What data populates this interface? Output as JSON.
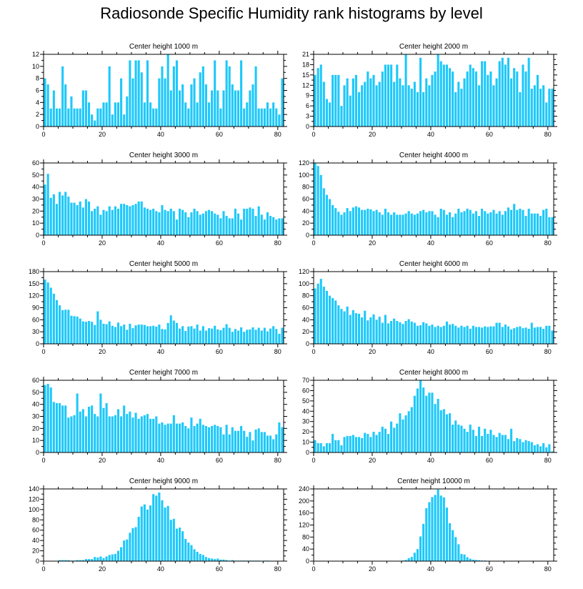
{
  "figure": {
    "title": "Radiosonde Specific Humidity rank histograms by level"
  },
  "chart_data": [
    {
      "type": "bar",
      "title": "Center height 1000 m",
      "xlabel": "",
      "ylabel": "",
      "xlim": [
        0,
        82
      ],
      "ylim": [
        0,
        12
      ],
      "xticks": [
        0,
        20,
        40,
        60,
        80
      ],
      "yticks": [
        0,
        2,
        4,
        6,
        8,
        10,
        12
      ],
      "bar_color": "#1ec8fa",
      "values": [
        8,
        7,
        3,
        6,
        3,
        3,
        10,
        7,
        3,
        5,
        3,
        3,
        3,
        6,
        6,
        4,
        2,
        1,
        3,
        3,
        4,
        4,
        10,
        2,
        4,
        4,
        8,
        2,
        5,
        11,
        8,
        11,
        11,
        9,
        4,
        11,
        4,
        3,
        3,
        8,
        10,
        8,
        12,
        6,
        10,
        11,
        6,
        7,
        4,
        3,
        7,
        8,
        4,
        9,
        10,
        7,
        4,
        6,
        11,
        6,
        3,
        6,
        11,
        10,
        7,
        6,
        6,
        11,
        3,
        4,
        6,
        7,
        10,
        3,
        3,
        3,
        4,
        3,
        4,
        3,
        2,
        8
      ]
    },
    {
      "type": "bar",
      "title": "Center height 2000 m",
      "xlabel": "",
      "ylabel": "",
      "xlim": [
        0,
        82
      ],
      "ylim": [
        0,
        21
      ],
      "xticks": [
        0,
        20,
        40,
        60,
        80
      ],
      "yticks": [
        0,
        3,
        6,
        9,
        12,
        15,
        18,
        21
      ],
      "bar_color": "#1ec8fa",
      "values": [
        15,
        17,
        18,
        13,
        8,
        7,
        15,
        15,
        15,
        6,
        12,
        14,
        9,
        14,
        15,
        10,
        12,
        13,
        16,
        14,
        15,
        12,
        13,
        16,
        18,
        18,
        18,
        13,
        18,
        14,
        12,
        21,
        12,
        11,
        13,
        10,
        20,
        10,
        14,
        12,
        15,
        16,
        21,
        19,
        18,
        18,
        17,
        16,
        10,
        13,
        11,
        14,
        16,
        18,
        17,
        16,
        12,
        19,
        19,
        15,
        16,
        12,
        14,
        19,
        20,
        18,
        20,
        14,
        17,
        16,
        10,
        18,
        16,
        20,
        11,
        12,
        15,
        11,
        12,
        7,
        11,
        11
      ]
    },
    {
      "type": "bar",
      "title": "Center height 3000 m",
      "xlabel": "",
      "ylabel": "",
      "xlim": [
        0,
        82
      ],
      "ylim": [
        0,
        60
      ],
      "xticks": [
        0,
        20,
        40,
        60,
        80
      ],
      "yticks": [
        0,
        10,
        20,
        30,
        40,
        50,
        60
      ],
      "bar_color": "#1ec8fa",
      "values": [
        42,
        51,
        31,
        34,
        26,
        36,
        33,
        36,
        32,
        27,
        27,
        25,
        28,
        23,
        30,
        28,
        20,
        22,
        24,
        17,
        21,
        20,
        24,
        21,
        24,
        22,
        26,
        26,
        25,
        24,
        25,
        26,
        28,
        28,
        23,
        22,
        21,
        22,
        20,
        19,
        25,
        21,
        20,
        22,
        20,
        13,
        22,
        21,
        19,
        15,
        19,
        22,
        20,
        17,
        18,
        20,
        21,
        20,
        18,
        17,
        14,
        20,
        16,
        14,
        14,
        22,
        18,
        13,
        22,
        22,
        23,
        22,
        16,
        24,
        17,
        13,
        19,
        16,
        15,
        13,
        14,
        14
      ]
    },
    {
      "type": "bar",
      "title": "Center height 4000 m",
      "xlabel": "",
      "ylabel": "",
      "xlim": [
        0,
        82
      ],
      "ylim": [
        0,
        120
      ],
      "xticks": [
        0,
        20,
        40,
        60,
        80
      ],
      "yticks": [
        0,
        20,
        40,
        60,
        80,
        100,
        120
      ],
      "bar_color": "#1ec8fa",
      "values": [
        120,
        115,
        100,
        78,
        67,
        60,
        50,
        45,
        39,
        34,
        38,
        45,
        40,
        46,
        48,
        46,
        42,
        42,
        44,
        43,
        40,
        42,
        38,
        34,
        44,
        38,
        34,
        38,
        34,
        34,
        34,
        36,
        40,
        36,
        34,
        36,
        40,
        42,
        38,
        40,
        40,
        34,
        30,
        44,
        42,
        34,
        38,
        30,
        36,
        44,
        38,
        40,
        44,
        42,
        36,
        40,
        32,
        44,
        40,
        36,
        38,
        42,
        36,
        40,
        34,
        40,
        46,
        42,
        52,
        42,
        44,
        42,
        32,
        44,
        36,
        36,
        36,
        32,
        42,
        44,
        30,
        30
      ]
    },
    {
      "type": "bar",
      "title": "Center height 5000 m",
      "xlabel": "",
      "ylabel": "",
      "xlim": [
        0,
        82
      ],
      "ylim": [
        0,
        180
      ],
      "xticks": [
        0,
        20,
        40,
        60,
        80
      ],
      "yticks": [
        0,
        30,
        60,
        90,
        120,
        150,
        180
      ],
      "bar_color": "#1ec8fa",
      "values": [
        160,
        153,
        140,
        125,
        109,
        96,
        84,
        85,
        85,
        70,
        69,
        68,
        63,
        56,
        55,
        57,
        55,
        47,
        81,
        60,
        50,
        49,
        56,
        45,
        42,
        53,
        44,
        48,
        35,
        50,
        39,
        46,
        48,
        48,
        47,
        44,
        44,
        45,
        43,
        48,
        37,
        36,
        52,
        71,
        58,
        52,
        38,
        44,
        32,
        43,
        44,
        38,
        48,
        33,
        44,
        33,
        39,
        38,
        45,
        36,
        34,
        40,
        49,
        40,
        30,
        37,
        33,
        41,
        30,
        35,
        36,
        41,
        35,
        40,
        33,
        40,
        31,
        38,
        44,
        37,
        25,
        40
      ]
    },
    {
      "type": "bar",
      "title": "Center height 6000 m",
      "xlabel": "",
      "ylabel": "",
      "xlim": [
        0,
        82
      ],
      "ylim": [
        0,
        120
      ],
      "xticks": [
        0,
        20,
        40,
        60,
        80
      ],
      "yticks": [
        0,
        20,
        40,
        60,
        80,
        100,
        120
      ],
      "bar_color": "#1ec8fa",
      "values": [
        92,
        100,
        108,
        95,
        88,
        80,
        76,
        72,
        64,
        58,
        54,
        62,
        48,
        56,
        51,
        50,
        44,
        55,
        39,
        44,
        49,
        40,
        45,
        35,
        48,
        34,
        38,
        42,
        38,
        36,
        33,
        38,
        41,
        37,
        35,
        30,
        31,
        36,
        34,
        30,
        32,
        28,
        30,
        28,
        30,
        37,
        32,
        33,
        30,
        27,
        30,
        28,
        30,
        25,
        30,
        28,
        28,
        27,
        29,
        28,
        29,
        29,
        35,
        35,
        28,
        32,
        29,
        24,
        26,
        28,
        29,
        26,
        27,
        25,
        35,
        27,
        28,
        28,
        25,
        30,
        30,
        22
      ]
    },
    {
      "type": "bar",
      "title": "Center height 7000 m",
      "xlabel": "",
      "ylabel": "",
      "xlim": [
        0,
        82
      ],
      "ylim": [
        0,
        60
      ],
      "xticks": [
        0,
        20,
        40,
        60,
        80
      ],
      "yticks": [
        0,
        10,
        20,
        30,
        40,
        50,
        60
      ],
      "bar_color": "#1ec8fa",
      "values": [
        56,
        57,
        54,
        42,
        41,
        41,
        39,
        39,
        29,
        30,
        31,
        49,
        34,
        36,
        30,
        38,
        39,
        32,
        30,
        49,
        37,
        41,
        30,
        30,
        31,
        36,
        30,
        39,
        32,
        34,
        29,
        33,
        28,
        30,
        31,
        32,
        28,
        28,
        30,
        24,
        25,
        23,
        24,
        24,
        31,
        24,
        24,
        25,
        22,
        20,
        29,
        22,
        24,
        28,
        23,
        22,
        21,
        22,
        23,
        22,
        21,
        15,
        23,
        15,
        21,
        18,
        18,
        22,
        18,
        13,
        17,
        10,
        19,
        20,
        17,
        17,
        14,
        14,
        11,
        15,
        25,
        21
      ]
    },
    {
      "type": "bar",
      "title": "Center height 8000 m",
      "xlabel": "",
      "ylabel": "",
      "xlim": [
        0,
        82
      ],
      "ylim": [
        0,
        70
      ],
      "xticks": [
        0,
        20,
        40,
        60,
        80
      ],
      "yticks": [
        0,
        10,
        20,
        30,
        40,
        50,
        60,
        70
      ],
      "bar_color": "#1ec8fa",
      "values": [
        12,
        9,
        9,
        6,
        9,
        9,
        18,
        12,
        12,
        7,
        15,
        16,
        16,
        17,
        15,
        15,
        14,
        19,
        18,
        15,
        20,
        17,
        20,
        25,
        23,
        18,
        30,
        24,
        28,
        38,
        32,
        36,
        40,
        44,
        55,
        62,
        70,
        63,
        55,
        58,
        58,
        47,
        52,
        41,
        42,
        37,
        38,
        27,
        31,
        27,
        26,
        23,
        20,
        27,
        22,
        16,
        25,
        16,
        23,
        18,
        22,
        17,
        15,
        19,
        17,
        17,
        13,
        23,
        11,
        14,
        13,
        10,
        12,
        11,
        10,
        7,
        8,
        6,
        9,
        5,
        8,
        1
      ]
    },
    {
      "type": "bar",
      "title": "Center height 9000 m",
      "xlabel": "",
      "ylabel": "",
      "xlim": [
        0,
        82
      ],
      "ylim": [
        0,
        140
      ],
      "xticks": [
        0,
        20,
        40,
        60,
        80
      ],
      "yticks": [
        0,
        20,
        40,
        60,
        80,
        100,
        120,
        140
      ],
      "bar_color": "#1ec8fa",
      "values": [
        0,
        0,
        0,
        0,
        0,
        2,
        2,
        2,
        2,
        1,
        1,
        2,
        2,
        2,
        4,
        4,
        4,
        8,
        7,
        9,
        6,
        9,
        12,
        13,
        14,
        20,
        27,
        40,
        42,
        55,
        64,
        66,
        86,
        106,
        110,
        100,
        108,
        130,
        127,
        133,
        118,
        104,
        107,
        80,
        82,
        63,
        65,
        58,
        43,
        36,
        31,
        23,
        18,
        14,
        12,
        8,
        6,
        5,
        4,
        5,
        3,
        3,
        2,
        1,
        2,
        1,
        1,
        1,
        1,
        1,
        1,
        1,
        1,
        1,
        0,
        1,
        1,
        0,
        0,
        0,
        0,
        0
      ]
    },
    {
      "type": "bar",
      "title": "Center height 10000 m",
      "xlabel": "",
      "ylabel": "",
      "xlim": [
        0,
        82
      ],
      "ylim": [
        0,
        240
      ],
      "xticks": [
        0,
        20,
        40,
        60,
        80
      ],
      "yticks": [
        0,
        40,
        80,
        120,
        160,
        200,
        240
      ],
      "bar_color": "#1ec8fa",
      "values": [
        0,
        0,
        0,
        0,
        0,
        0,
        0,
        0,
        0,
        0,
        0,
        0,
        0,
        0,
        0,
        0,
        0,
        0,
        0,
        0,
        0,
        0,
        0,
        0,
        0,
        0,
        0,
        0,
        0,
        0,
        2,
        4,
        10,
        14,
        28,
        40,
        82,
        124,
        176,
        196,
        213,
        220,
        238,
        218,
        212,
        178,
        126,
        103,
        80,
        56,
        24,
        22,
        13,
        8,
        5,
        4,
        3,
        2,
        2,
        1,
        1,
        1,
        0,
        0,
        0,
        0,
        0,
        0,
        0,
        0,
        0,
        0,
        0,
        0,
        0,
        0,
        0,
        0,
        0,
        0,
        0,
        0
      ]
    }
  ]
}
